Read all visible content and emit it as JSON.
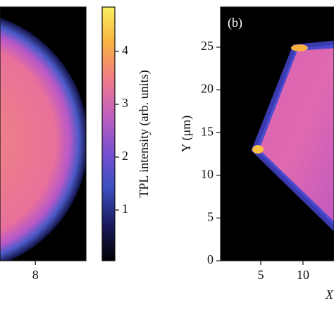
{
  "chart_data": [
    {
      "type": "image",
      "xlim": [
        3.8,
        14
      ],
      "xticks": [
        8
      ]
    },
    {
      "type": "colorbar",
      "label": "TPL intensity (arb. units)",
      "clim": [
        0.04,
        4.84
      ],
      "ticks": [
        1,
        2,
        3,
        4
      ],
      "colors": [
        "#000000",
        "#1a1a5e",
        "#3a4fc0",
        "#7a4fd0",
        "#c060c0",
        "#f07a8a",
        "#f8b040",
        "#f8f060"
      ]
    },
    {
      "type": "image",
      "panel_label": "(b)",
      "xlim": [
        0.25,
        13.67
      ],
      "ylim": [
        0,
        29.7
      ],
      "xticks": [
        5,
        10
      ],
      "yticks": [
        0,
        5,
        10,
        15,
        20,
        25
      ],
      "ylabel": "Y (μm)",
      "xlabel": "X"
    }
  ]
}
